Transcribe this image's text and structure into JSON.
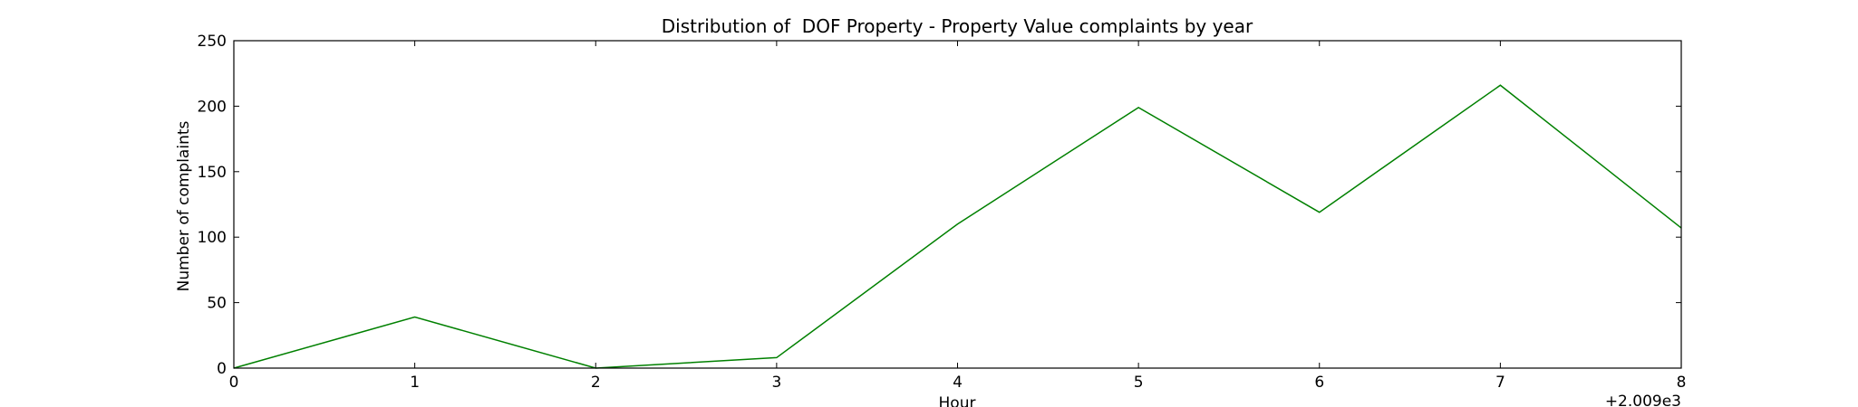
{
  "chart_data": {
    "type": "line",
    "title": "Distribution of  DOF Property - Property Value complaints by year",
    "xlabel": "Hour",
    "ylabel": "Number of complaints",
    "x_offset_label": "+2.009e3",
    "xlim": [
      0,
      8
    ],
    "ylim": [
      0,
      250
    ],
    "x_ticks": [
      "0",
      "1",
      "2",
      "3",
      "4",
      "5",
      "6",
      "7",
      "8"
    ],
    "y_ticks": [
      "0",
      "50",
      "100",
      "150",
      "200",
      "250"
    ],
    "grid": false,
    "series": [
      {
        "color": "#008000",
        "x": [
          0,
          1,
          2,
          3,
          4,
          5,
          6,
          7,
          8
        ],
        "y": [
          0,
          39,
          0,
          8,
          110,
          199,
          119,
          216,
          107
        ]
      }
    ]
  }
}
